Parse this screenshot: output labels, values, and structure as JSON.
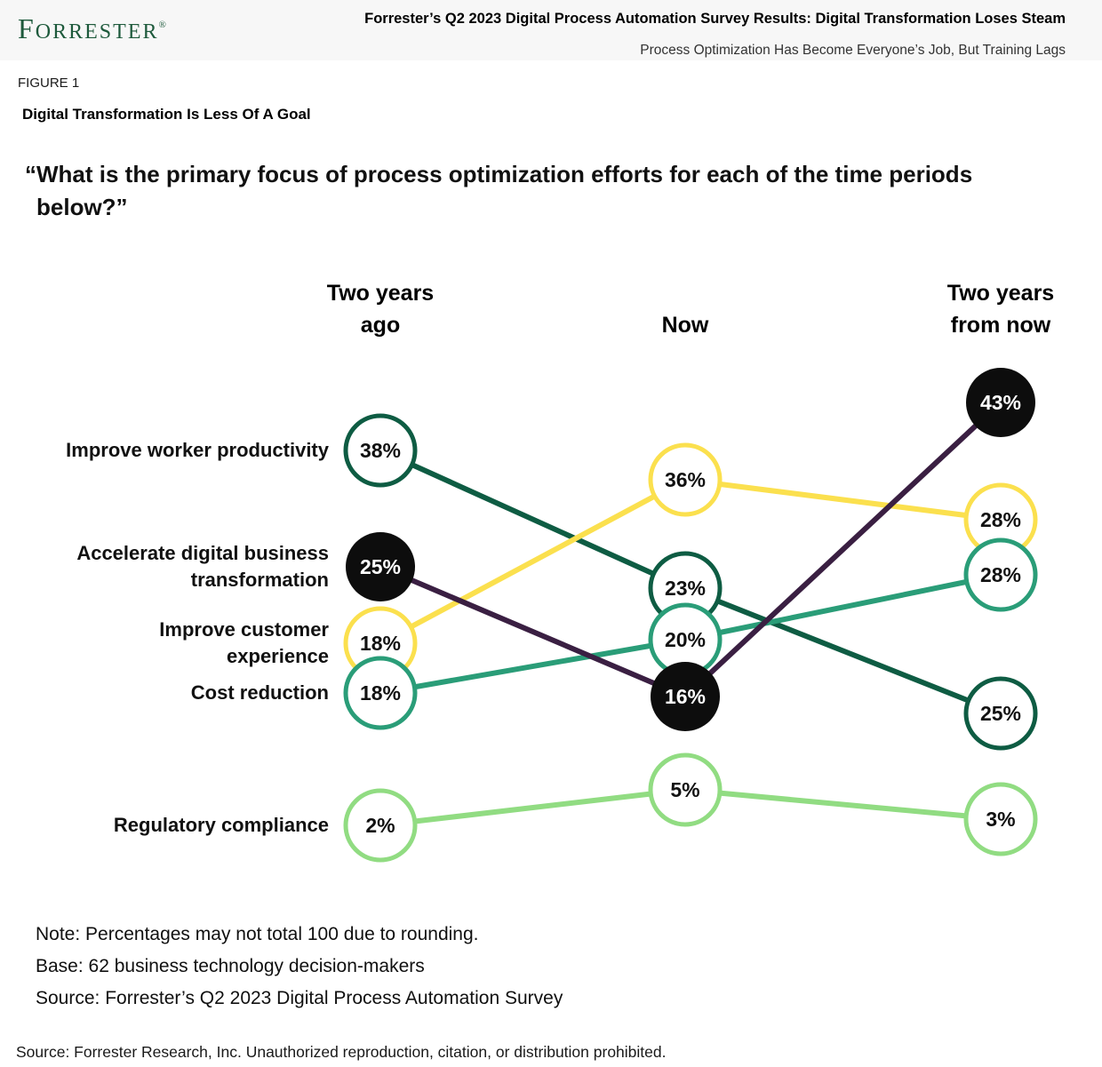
{
  "header": {
    "logo_f": "F",
    "logo_rest": "ORRESTER",
    "logo_registered": "®",
    "title": "Forrester’s Q2 2023 Digital Process Automation Survey Results: Digital Transformation Loses Steam",
    "subtitle": "Process Optimization Has Become Everyone’s Job, But Training Lags"
  },
  "figure": {
    "label": "FIGURE 1",
    "title": "Digital Transformation Is Less Of A Goal"
  },
  "question": {
    "line1": "“What is the primary focus of process optimization efforts for each of the time periods",
    "line2": "below?”"
  },
  "chart_data": {
    "type": "line",
    "subtype": "bump-slope-chart",
    "title": "Digital Transformation Is Less Of A Goal",
    "categories": [
      "Two years ago",
      "Now",
      "Two years from now"
    ],
    "value_suffix": "%",
    "legend_position": "left-row-labels",
    "grid": false,
    "columns": [
      {
        "lines": [
          "Two years",
          "ago"
        ]
      },
      {
        "lines": [
          "Now"
        ]
      },
      {
        "lines": [
          "Two years",
          "from now"
        ]
      }
    ],
    "series": [
      {
        "id": "improve-worker-productivity",
        "name": "Improve worker productivity",
        "label_lines": [
          "Improve worker productivity"
        ],
        "values": [
          38,
          23,
          25
        ],
        "color": "#0e5c43",
        "line_color": "#0e5c43",
        "filled": false
      },
      {
        "id": "accelerate-digital-business-transformation",
        "name": "Accelerate digital business transformation",
        "label_lines": [
          "Accelerate digital business",
          "transformation"
        ],
        "values": [
          25,
          16,
          43
        ],
        "color": "#0d0d0d",
        "line_color": "#3a1f42",
        "filled": true
      },
      {
        "id": "improve-customer-experience",
        "name": "Improve customer experience",
        "label_lines": [
          "Improve customer",
          "experience"
        ],
        "values": [
          18,
          36,
          28
        ],
        "color": "#fbe04e",
        "line_color": "#fbe04e",
        "filled": false
      },
      {
        "id": "cost-reduction",
        "name": "Cost reduction",
        "label_lines": [
          "Cost reduction"
        ],
        "values": [
          18,
          20,
          28
        ],
        "color": "#2a9d78",
        "line_color": "#2a9d78",
        "filled": false
      },
      {
        "id": "regulatory-compliance",
        "name": "Regulatory compliance",
        "label_lines": [
          "Regulatory compliance"
        ],
        "values": [
          2,
          5,
          3
        ],
        "color": "#91dc82",
        "line_color": "#91dc82",
        "filled": false
      }
    ]
  },
  "notes": [
    "Note: Percentages may not total 100 due to rounding.",
    "Base: 62 business technology decision-makers",
    "Source: Forrester’s Q2 2023 Digital Process Automation Survey"
  ],
  "footer": "Source: Forrester Research, Inc. Unauthorized reproduction, citation, or distribution prohibited."
}
